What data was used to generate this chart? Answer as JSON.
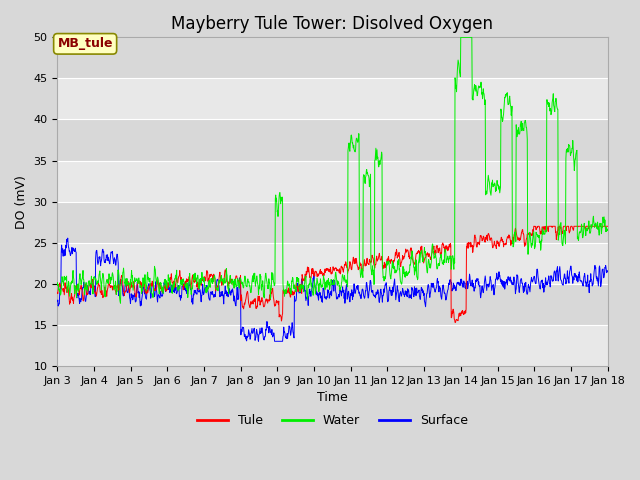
{
  "title": "Mayberry Tule Tower: Disolved Oxygen",
  "xlabel": "Time",
  "ylabel": "DO (mV)",
  "ylim": [
    10,
    50
  ],
  "yticks": [
    10,
    15,
    20,
    25,
    30,
    35,
    40,
    45,
    50
  ],
  "xlim": [
    0,
    360
  ],
  "xtick_positions": [
    0,
    24,
    48,
    72,
    96,
    120,
    144,
    168,
    192,
    216,
    240,
    264,
    288,
    312,
    336,
    360
  ],
  "xtick_labels": [
    "Jan 3",
    "Jan 4",
    "Jan 5",
    "Jan 6",
    "Jan 7",
    "Jan 8",
    "Jan 9",
    "Jan 10",
    "Jan 11",
    "Jan 12",
    "Jan 13",
    "Jan 14",
    "Jan 15",
    "Jan 16",
    "Jan 17",
    "Jan 18"
  ],
  "annotation_text": "MB_tule",
  "fig_bg": "#d8d8d8",
  "plot_bg": "#e8e8e8",
  "band_light": "#e8e8e8",
  "band_dark": "#d8d8d8",
  "tule_color": "red",
  "water_color": "#00ee00",
  "surface_color": "blue",
  "legend_items": [
    "Tule",
    "Water",
    "Surface"
  ],
  "legend_colors": [
    "red",
    "#00ee00",
    "blue"
  ],
  "title_fontsize": 12,
  "axis_fontsize": 9,
  "tick_fontsize": 8
}
